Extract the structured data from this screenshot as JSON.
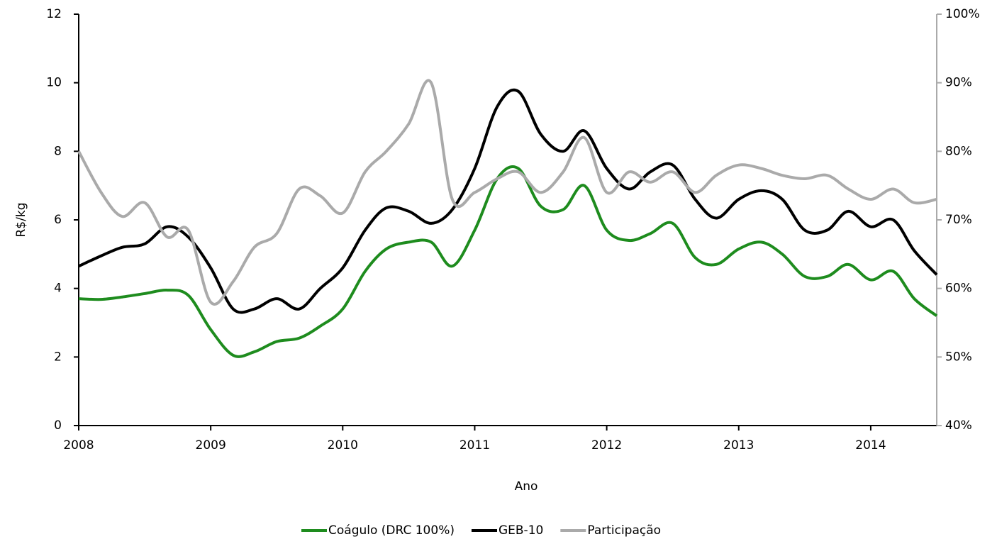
{
  "chart_data": {
    "type": "line",
    "xlabel": "Ano",
    "ylabel": "R$/kg",
    "x": [
      2008,
      2008.17,
      2008.33,
      2008.5,
      2008.67,
      2008.83,
      2009,
      2009.17,
      2009.33,
      2009.5,
      2009.67,
      2009.83,
      2010,
      2010.17,
      2010.33,
      2010.5,
      2010.67,
      2010.83,
      2011,
      2011.17,
      2011.33,
      2011.5,
      2011.67,
      2011.83,
      2012,
      2012.17,
      2012.33,
      2012.5,
      2012.67,
      2012.83,
      2013,
      2013.17,
      2013.33,
      2013.5,
      2013.67,
      2013.83,
      2014,
      2014.17,
      2014.33,
      2014.5
    ],
    "series": [
      {
        "name": "Coágulo (DRC 100%)",
        "color": "#1e8c1e",
        "values": [
          3.7,
          3.68,
          3.75,
          3.85,
          3.95,
          3.8,
          2.8,
          2.05,
          2.15,
          2.45,
          2.55,
          2.9,
          3.4,
          4.5,
          5.15,
          5.35,
          5.35,
          4.65,
          5.7,
          7.2,
          7.5,
          6.4,
          6.3,
          7.0,
          5.7,
          5.4,
          5.6,
          5.9,
          4.9,
          4.7,
          5.15,
          5.35,
          5.0,
          4.35,
          4.35,
          4.7,
          4.25,
          4.5,
          3.7,
          3.2
        ]
      },
      {
        "name": "GEB-10",
        "color": "#000000",
        "values": [
          4.65,
          4.95,
          5.2,
          5.3,
          5.8,
          5.5,
          4.6,
          3.4,
          3.4,
          3.7,
          3.4,
          4.0,
          4.6,
          5.7,
          6.35,
          6.25,
          5.9,
          6.3,
          7.5,
          9.3,
          9.75,
          8.5,
          8.0,
          8.6,
          7.5,
          6.9,
          7.4,
          7.6,
          6.6,
          6.05,
          6.6,
          6.85,
          6.6,
          5.7,
          5.7,
          6.25,
          5.8,
          6.0,
          5.1,
          4.4
        ]
      },
      {
        "name": "Participação",
        "color": "#aaaaaa",
        "axis": "y2",
        "values": [
          80,
          74,
          70.5,
          72.5,
          67.5,
          68.5,
          58,
          61,
          66,
          68,
          74.5,
          73.5,
          71,
          77,
          80,
          84,
          90,
          73,
          74,
          76,
          77,
          74,
          77,
          82,
          74,
          77,
          75.5,
          77,
          74,
          76.5,
          78,
          77.5,
          76.5,
          76,
          76.5,
          74.5,
          73,
          74.5,
          72.5,
          73
        ]
      }
    ],
    "xlim": [
      2008,
      2014.5
    ],
    "xticks": [
      2008,
      2009,
      2010,
      2011,
      2012,
      2013,
      2014
    ],
    "ylim": [
      0,
      12
    ],
    "yticks": [
      0,
      2,
      4,
      6,
      8,
      10,
      12
    ],
    "y2lim": [
      40,
      100
    ],
    "y2ticks": [
      {
        "value": 40,
        "label": "40%"
      },
      {
        "value": 50,
        "label": "50%"
      },
      {
        "value": 60,
        "label": "60%"
      },
      {
        "value": 70,
        "label": "70%"
      },
      {
        "value": 80,
        "label": "80%"
      },
      {
        "value": 90,
        "label": "90%"
      },
      {
        "value": 100,
        "label": "100%"
      }
    ],
    "grid": false,
    "legend": "bottom"
  }
}
